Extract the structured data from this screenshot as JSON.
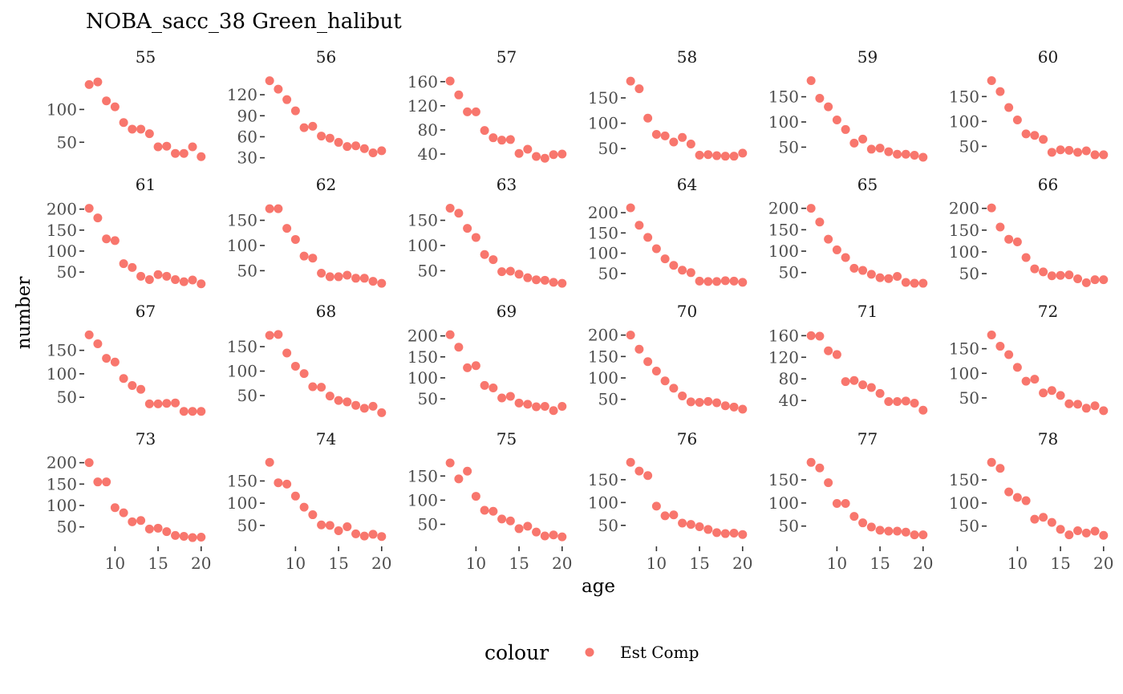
{
  "chart_data": {
    "type": "scatter",
    "title": "NOBA_sacc_38 Green_halibut",
    "xlabel": "age",
    "ylabel": "number",
    "x": [
      7,
      8,
      9,
      10,
      11,
      12,
      13,
      14,
      15,
      16,
      17,
      18,
      19,
      20
    ],
    "xlim": [
      6.8,
      20.3
    ],
    "xticks": [
      10,
      15,
      20
    ],
    "legend": {
      "title": "colour",
      "position": "bottom",
      "entries": [
        {
          "label": "Est Comp",
          "color": "#F8766D"
        }
      ]
    },
    "point_color": "#F8766D",
    "series": [
      {
        "name": "Est Comp"
      }
    ],
    "panels": [
      {
        "label": "55",
        "yticks": [
          50,
          100
        ],
        "ylim": [
          21,
          147
        ],
        "values": [
          138,
          142,
          113,
          104,
          80,
          70,
          70,
          63,
          43,
          44,
          33,
          33,
          43,
          28
        ]
      },
      {
        "label": "56",
        "yticks": [
          30,
          60,
          90,
          120
        ],
        "ylim": [
          25,
          143
        ],
        "values": [
          140,
          128,
          113,
          97,
          73,
          75,
          61,
          58,
          52,
          46,
          47,
          43,
          37,
          40
        ]
      },
      {
        "label": "57",
        "yticks": [
          40,
          80,
          120,
          160
        ],
        "ylim": [
          28,
          165
        ],
        "values": [
          161,
          138,
          110,
          110,
          79,
          67,
          63,
          64,
          41,
          48,
          36,
          33,
          39,
          40
        ]
      },
      {
        "label": "58",
        "yticks": [
          50,
          100,
          150
        ],
        "ylim": [
          25,
          188
        ],
        "values": [
          183,
          168,
          110,
          78,
          75,
          63,
          72,
          59,
          37,
          38,
          36,
          35,
          35,
          41
        ]
      },
      {
        "label": "59",
        "yticks": [
          50,
          100,
          150
        ],
        "ylim": [
          22,
          186
        ],
        "values": [
          182,
          147,
          130,
          104,
          85,
          58,
          66,
          46,
          48,
          41,
          36,
          36,
          34,
          30
        ]
      },
      {
        "label": "60",
        "yticks": [
          50,
          100,
          150
        ],
        "ylim": [
          20,
          186
        ],
        "values": [
          182,
          160,
          128,
          103,
          75,
          72,
          64,
          38,
          43,
          42,
          38,
          41,
          33,
          33
        ]
      },
      {
        "label": "61",
        "yticks": [
          50,
          100,
          150,
          200
        ],
        "ylim": [
          10,
          207
        ],
        "values": [
          202,
          179,
          129,
          125,
          70,
          61,
          40,
          32,
          44,
          40,
          32,
          27,
          31,
          22
        ]
      },
      {
        "label": "62",
        "yticks": [
          50,
          100,
          150
        ],
        "ylim": [
          14,
          178
        ],
        "values": [
          173,
          173,
          134,
          112,
          79,
          75,
          45,
          38,
          38,
          41,
          35,
          35,
          29,
          25
        ]
      },
      {
        "label": "63",
        "yticks": [
          50,
          100,
          150
        ],
        "ylim": [
          14,
          178
        ],
        "values": [
          174,
          164,
          134,
          116,
          82,
          72,
          48,
          49,
          43,
          36,
          32,
          31,
          27,
          25
        ]
      },
      {
        "label": "64",
        "yticks": [
          50,
          100,
          150,
          200
        ],
        "ylim": [
          12,
          216
        ],
        "values": [
          212,
          169,
          139,
          111,
          86,
          70,
          58,
          52,
          31,
          30,
          30,
          32,
          31,
          28
        ]
      },
      {
        "label": "65",
        "yticks": [
          50,
          100,
          150,
          200
        ],
        "ylim": [
          12,
          205
        ],
        "values": [
          200,
          168,
          128,
          103,
          85,
          60,
          55,
          46,
          38,
          36,
          41,
          27,
          25,
          25
        ]
      },
      {
        "label": "66",
        "yticks": [
          50,
          100,
          150,
          200
        ],
        "ylim": [
          15,
          205
        ],
        "values": [
          201,
          157,
          129,
          123,
          87,
          61,
          54,
          45,
          46,
          47,
          38,
          29,
          36,
          36
        ]
      },
      {
        "label": "67",
        "yticks": [
          50,
          100,
          150
        ],
        "ylim": [
          11,
          187
        ],
        "values": [
          183,
          164,
          133,
          125,
          90,
          75,
          67,
          36,
          36,
          37,
          38,
          20,
          20,
          20
        ]
      },
      {
        "label": "68",
        "yticks": [
          50,
          100,
          150
        ],
        "ylim": [
          9,
          178
        ],
        "values": [
          173,
          175,
          137,
          110,
          95,
          68,
          67,
          49,
          40,
          37,
          30,
          24,
          28,
          15
        ]
      },
      {
        "label": "69",
        "yticks": [
          50,
          100,
          150,
          200
        ],
        "ylim": [
          10,
          207
        ],
        "values": [
          203,
          173,
          124,
          129,
          82,
          76,
          52,
          56,
          40,
          37,
          31,
          32,
          22,
          32
        ]
      },
      {
        "label": "70",
        "yticks": [
          50,
          100,
          150,
          200
        ],
        "ylim": [
          12,
          205
        ],
        "values": [
          200,
          167,
          138,
          116,
          93,
          76,
          58,
          44,
          43,
          45,
          42,
          35,
          32,
          27
        ]
      },
      {
        "label": "71",
        "yticks": [
          40,
          80,
          120,
          160
        ],
        "ylim": [
          12,
          165
        ],
        "values": [
          160,
          159,
          132,
          125,
          75,
          77,
          69,
          64,
          53,
          38,
          38,
          39,
          35,
          22
        ]
      },
      {
        "label": "72",
        "yticks": [
          50,
          100,
          150
        ],
        "ylim": [
          14,
          182
        ],
        "values": [
          178,
          155,
          138,
          112,
          84,
          88,
          60,
          65,
          55,
          38,
          37,
          29,
          34,
          24
        ]
      },
      {
        "label": "73",
        "yticks": [
          50,
          100,
          150,
          200
        ],
        "ylim": [
          12,
          205
        ],
        "values": [
          200,
          155,
          155,
          95,
          83,
          62,
          65,
          45,
          47,
          39,
          30,
          28,
          25,
          26
        ]
      },
      {
        "label": "74",
        "yticks": [
          50,
          100,
          150
        ],
        "ylim": [
          10,
          196
        ],
        "values": [
          192,
          146,
          143,
          116,
          91,
          74,
          51,
          50,
          38,
          47,
          31,
          26,
          30,
          25
        ]
      },
      {
        "label": "75",
        "yticks": [
          50,
          100,
          150
        ],
        "ylim": [
          11,
          182
        ],
        "values": [
          177,
          144,
          160,
          108,
          79,
          77,
          61,
          57,
          41,
          46,
          34,
          26,
          28,
          24
        ]
      },
      {
        "label": "76",
        "yticks": [
          50,
          100,
          150
        ],
        "ylim": [
          11,
          192
        ],
        "values": [
          188,
          169,
          159,
          92,
          71,
          73,
          55,
          52,
          47,
          41,
          34,
          32,
          33,
          30
        ]
      },
      {
        "label": "77",
        "yticks": [
          50,
          100,
          150
        ],
        "ylim": [
          13,
          192
        ],
        "values": [
          188,
          176,
          144,
          99,
          99,
          71,
          57,
          48,
          41,
          39,
          39,
          37,
          31,
          31
        ]
      },
      {
        "label": "78",
        "yticks": [
          50,
          100,
          150
        ],
        "ylim": [
          13,
          192
        ],
        "values": [
          188,
          175,
          124,
          112,
          105,
          65,
          69,
          58,
          43,
          31,
          40,
          35,
          39,
          30
        ]
      }
    ]
  }
}
